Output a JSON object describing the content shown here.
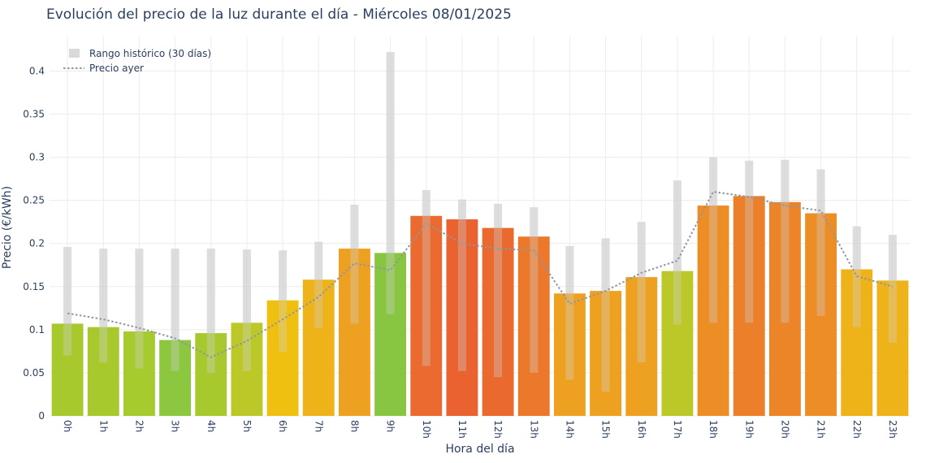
{
  "chart_data": {
    "type": "bar",
    "title": "Evolución del precio de la luz durante el día - Miércoles 08/01/2025",
    "xlabel": "Hora del día",
    "ylabel": "Precio (€/kWh)",
    "ylim": [
      0,
      0.44
    ],
    "yticks": [
      0,
      0.05,
      0.1,
      0.15,
      0.2,
      0.25,
      0.3,
      0.35,
      0.4
    ],
    "ytick_labels": [
      "0",
      "0.05",
      "0.1",
      "0.15",
      "0.2",
      "0.25",
      "0.3",
      "0.35",
      "0.4"
    ],
    "grid": true,
    "legend_position": "top-left",
    "legend": {
      "range_label": "Rango histórico (30 días)",
      "yesterday_label": "Precio ayer"
    },
    "categories": [
      "0h",
      "1h",
      "2h",
      "3h",
      "4h",
      "5h",
      "6h",
      "7h",
      "8h",
      "9h",
      "10h",
      "11h",
      "12h",
      "13h",
      "14h",
      "15h",
      "16h",
      "17h",
      "18h",
      "19h",
      "20h",
      "21h",
      "22h",
      "23h"
    ],
    "series": [
      {
        "values": [
          0.107,
          0.103,
          0.098,
          0.088,
          0.096,
          0.108,
          0.134,
          0.158,
          0.194,
          0.189,
          0.232,
          0.228,
          0.218,
          0.208,
          0.142,
          0.145,
          0.161,
          0.168,
          0.244,
          0.255,
          0.248,
          0.235,
          0.17,
          0.157
        ],
        "colors": [
          "#a8c92e",
          "#a8c92e",
          "#a5cb2f",
          "#8dc63f",
          "#a8c92e",
          "#bcc828",
          "#f0c010",
          "#efb31a",
          "#eea020",
          "#88c540",
          "#ea6a2f",
          "#ea6230",
          "#ea692f",
          "#ec782b",
          "#eea020",
          "#eea020",
          "#eea020",
          "#bcc828",
          "#ed8d25",
          "#eb7f2a",
          "#ec8428",
          "#ed8d25",
          "#efb31a",
          "#efb31a"
        ]
      },
      {
        "name": "Rango histórico (30 días)",
        "type": "range",
        "low": [
          0.07,
          0.062,
          0.055,
          0.052,
          0.05,
          0.052,
          0.074,
          0.102,
          0.107,
          0.118,
          0.058,
          0.052,
          0.045,
          0.05,
          0.042,
          0.028,
          0.062,
          0.106,
          0.108,
          0.108,
          0.108,
          0.116,
          0.103,
          0.085
        ],
        "high": [
          0.196,
          0.194,
          0.194,
          0.194,
          0.194,
          0.193,
          0.192,
          0.202,
          0.245,
          0.422,
          0.262,
          0.251,
          0.246,
          0.242,
          0.197,
          0.206,
          0.225,
          0.273,
          0.3,
          0.296,
          0.297,
          0.286,
          0.22,
          0.21
        ]
      },
      {
        "name": "Precio ayer",
        "type": "line",
        "values": [
          0.119,
          0.112,
          0.102,
          0.09,
          0.068,
          0.087,
          0.112,
          0.138,
          0.177,
          0.169,
          0.223,
          0.2,
          0.194,
          0.192,
          0.13,
          0.145,
          0.166,
          0.18,
          0.26,
          0.254,
          0.244,
          0.238,
          0.162,
          0.15
        ]
      }
    ]
  }
}
